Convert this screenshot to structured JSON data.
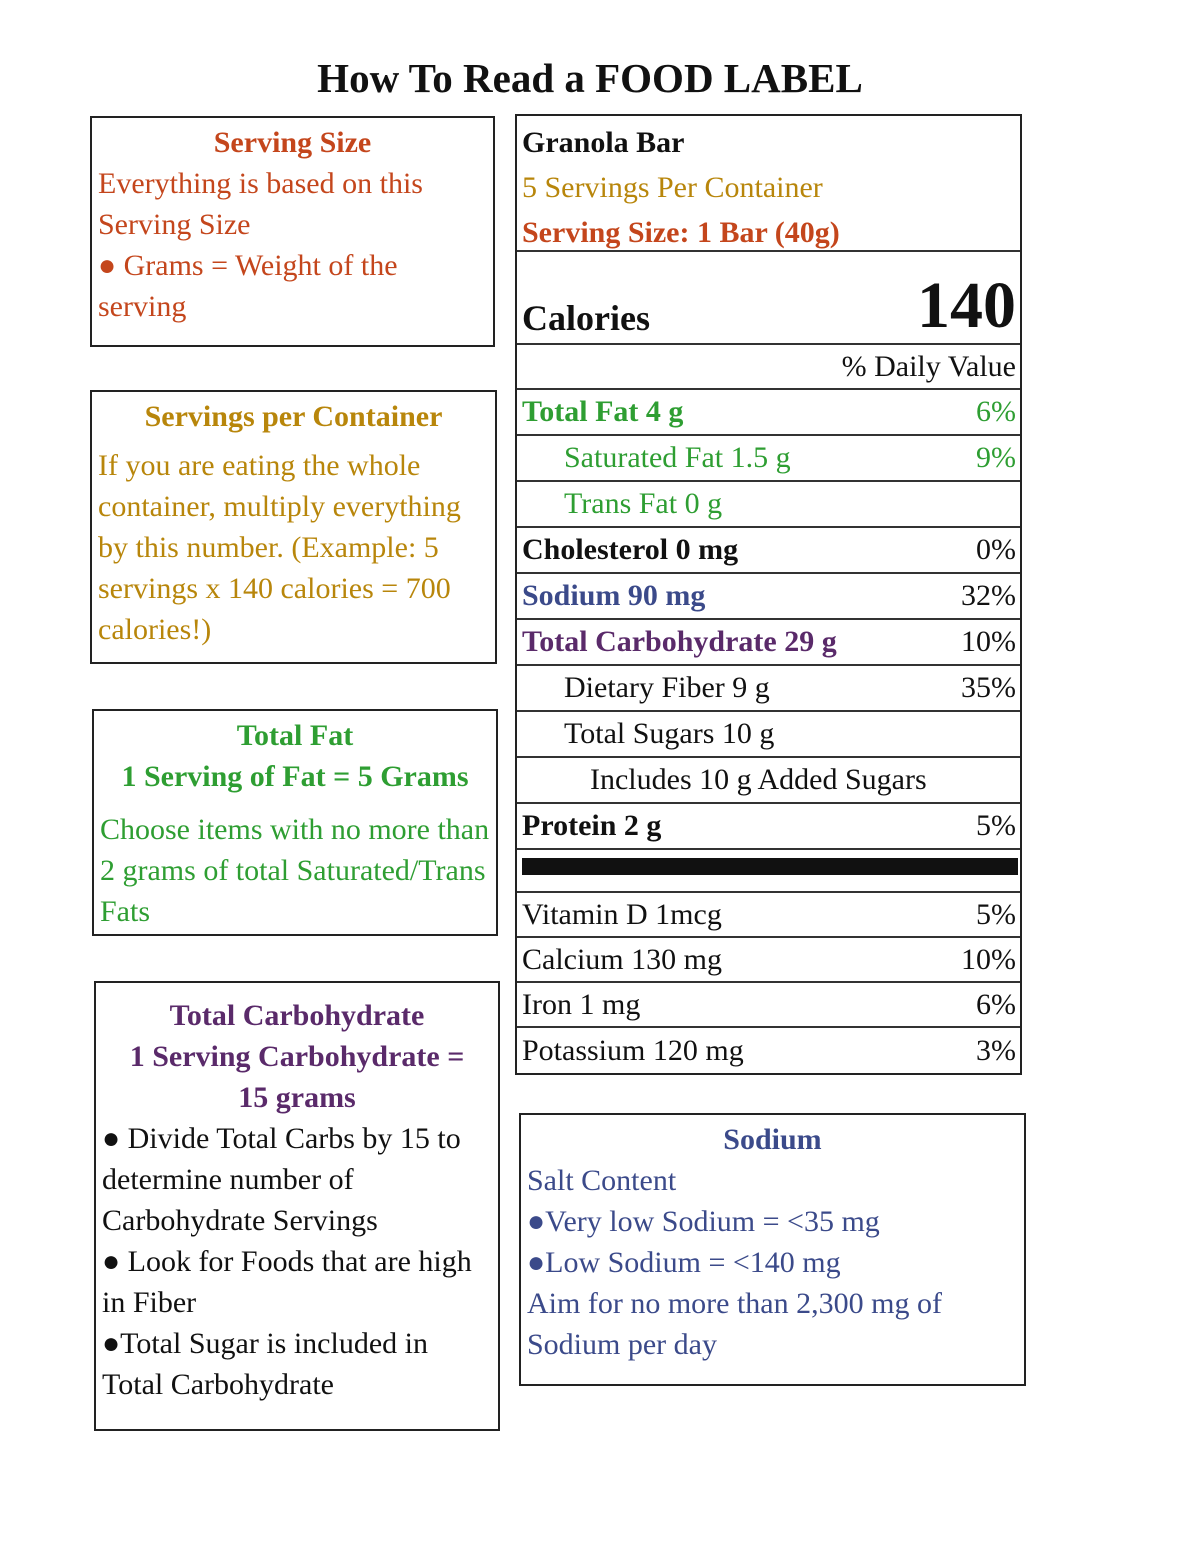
{
  "title": "How To Read a FOOD LABEL",
  "colors": {
    "serving_size": "#c4461c",
    "servings_per_container": "#b8860b",
    "total_fat": "#2e9e32",
    "carbohydrate": "#5a2a6a",
    "sodium": "#3b4a8a",
    "text": "#111111"
  },
  "boxes": {
    "serving_size": {
      "heading": "Serving Size",
      "lines": [
        "Everything is based on this Serving Size",
        "● Grams = Weight of the serving"
      ]
    },
    "servings_per_container": {
      "heading": "Servings per Container",
      "lines": [
        "If you are eating the whole container, multiply everything by this number. (Example: 5 servings x 140 calories = 700 calories!)"
      ]
    },
    "total_fat": {
      "heading": "Total Fat",
      "subheading": "1 Serving of Fat = 5 Grams",
      "lines": [
        "Choose items with no more than 2 grams of total Saturated/Trans Fats"
      ]
    },
    "total_carbohydrate": {
      "heading": "Total Carbohydrate",
      "subheading": "1 Serving Carbohydrate = 15 grams",
      "lines": [
        "● Divide Total Carbs by 15 to determine number of Carbohydrate Servings",
        "● Look for Foods that are high in Fiber",
        "●Total Sugar is included in Total Carbohydrate"
      ]
    },
    "sodium": {
      "heading": "Sodium",
      "lines": [
        "Salt Content",
        "●Very low Sodium = <35 mg",
        "●Low Sodium = <140 mg",
        "Aim for no more than 2,300 mg of Sodium per day"
      ]
    }
  },
  "label": {
    "product": "Granola Bar",
    "servings": "5 Servings Per Container",
    "serving_size": "Serving Size: 1 Bar (40g)",
    "calories_label": "Calories",
    "calories_value": "140",
    "dv_header": "% Daily Value",
    "nutrients": [
      {
        "name": "Total Fat 4 g",
        "pct": "6%",
        "bold": true,
        "color": "total_fat",
        "indent": 0
      },
      {
        "name": "Saturated Fat 1.5 g",
        "pct": "9%",
        "bold": false,
        "color": "total_fat",
        "indent": 1
      },
      {
        "name": "Trans Fat 0 g",
        "pct": "",
        "bold": false,
        "color": "total_fat",
        "indent": 1
      },
      {
        "name": "Cholesterol 0 mg",
        "pct": "0%",
        "bold": true,
        "color": "text",
        "indent": 0
      },
      {
        "name": "Sodium 90 mg",
        "pct": "32%",
        "bold": true,
        "color": "sodium",
        "indent": 0
      },
      {
        "name": "Total Carbohydrate 29 g",
        "pct": "10%",
        "bold": true,
        "color": "carbohydrate",
        "indent": 0
      },
      {
        "name": "Dietary Fiber 9 g",
        "pct": "35%",
        "bold": false,
        "color": "text",
        "indent": 1
      },
      {
        "name": "Total Sugars 10 g",
        "pct": "",
        "bold": false,
        "color": "text",
        "indent": 1
      },
      {
        "name": "Includes 10 g Added Sugars",
        "pct": "",
        "bold": false,
        "color": "text",
        "indent": 2
      },
      {
        "name": "Protein 2 g",
        "pct": "5%",
        "bold": true,
        "color": "text",
        "indent": 0
      }
    ],
    "vitamins": [
      {
        "name": "Vitamin D 1mcg",
        "pct": "5%"
      },
      {
        "name": "Calcium 130 mg",
        "pct": "10%"
      },
      {
        "name": "Iron 1 mg",
        "pct": "6%"
      },
      {
        "name": "Potassium 120 mg",
        "pct": "3%"
      }
    ]
  }
}
